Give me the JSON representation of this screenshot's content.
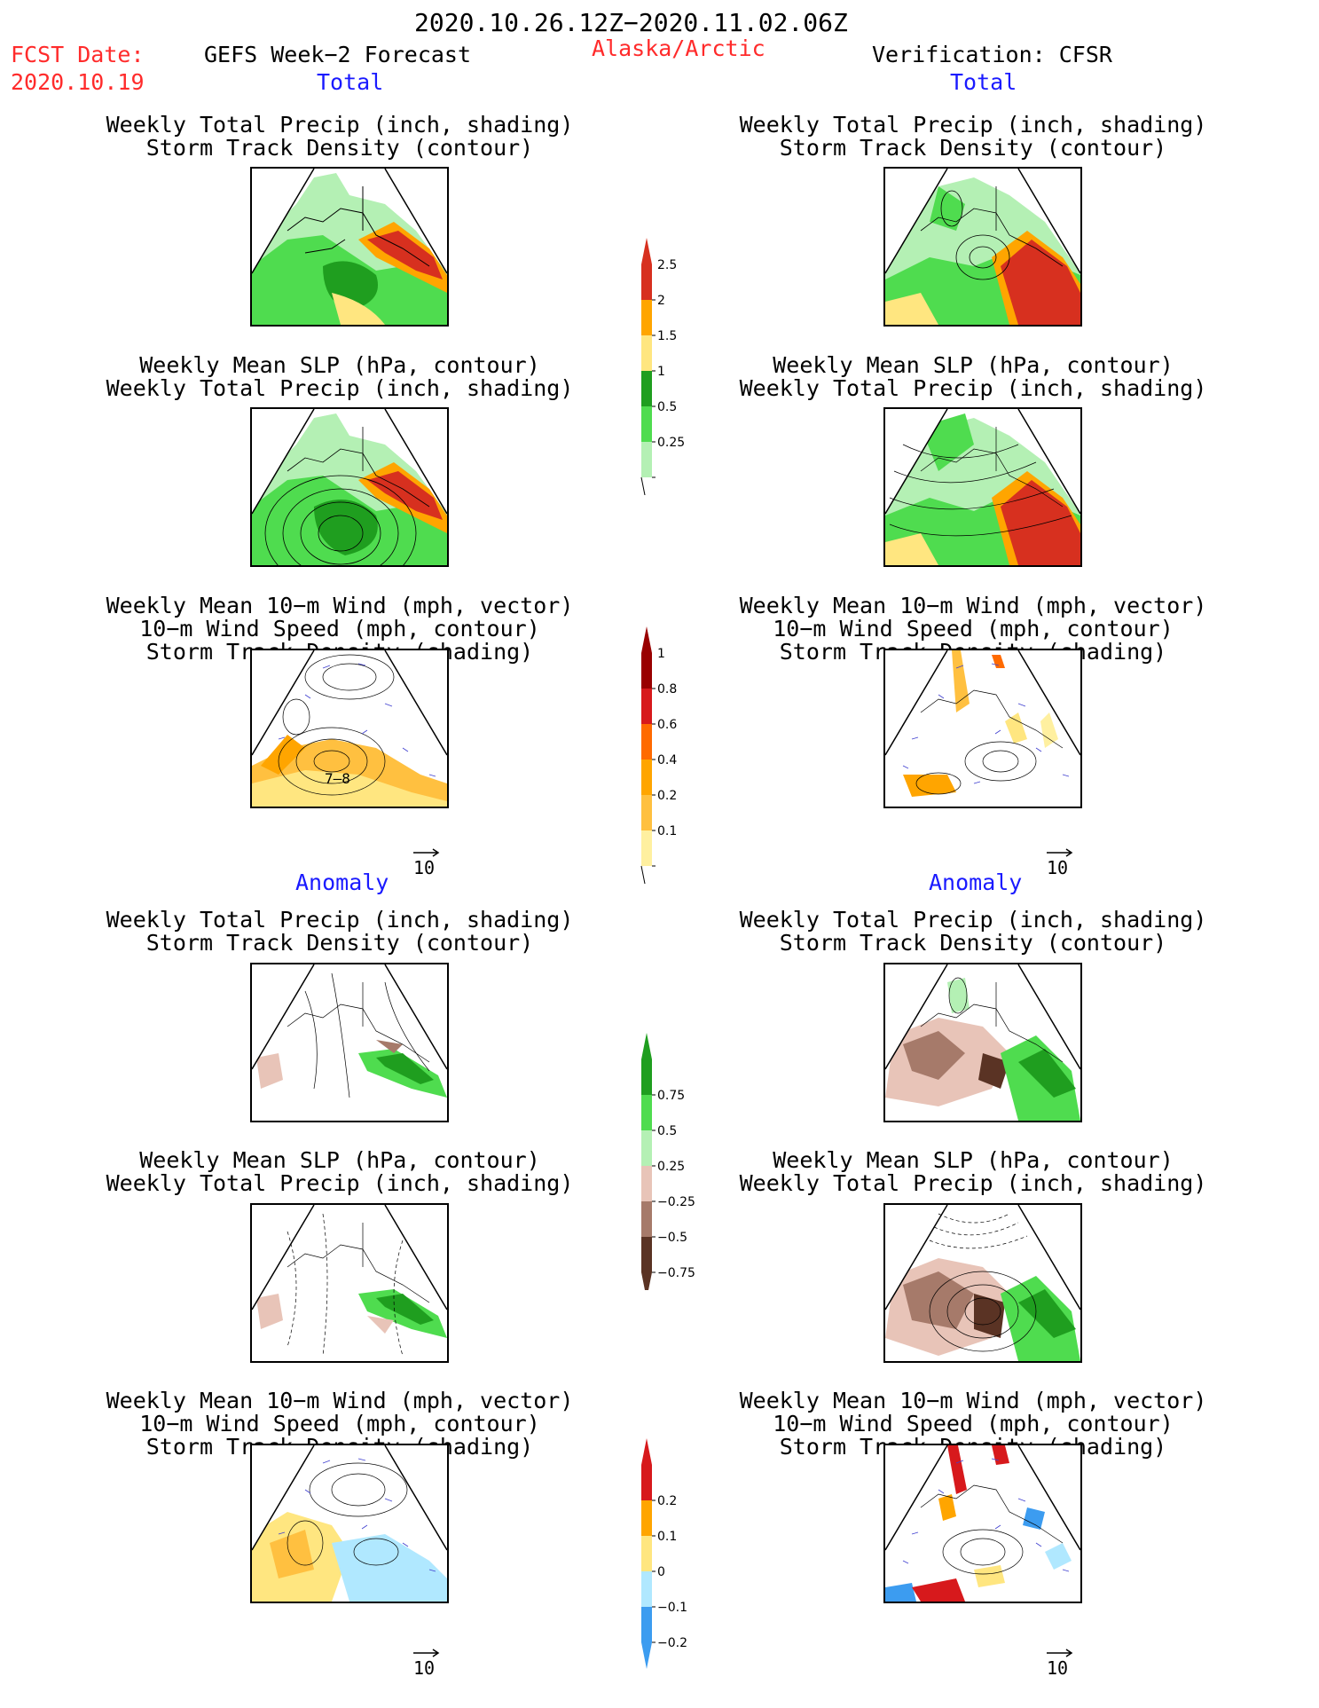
{
  "header": {
    "title": "2020.10.26.12Z−2020.11.02.06Z",
    "fcst_label": "FCST Date:",
    "fcst_date": "2020.10.19",
    "forecast": "GEFS Week−2 Forecast",
    "region": "Alaska/Arctic",
    "verification": "Verification: CFSR"
  },
  "sections": {
    "total": "Total",
    "anomaly": "Anomaly"
  },
  "panel_titles": {
    "precip_track": [
      "Weekly Total Precip (inch, shading)",
      "Storm Track Density (contour)"
    ],
    "slp_precip": [
      "Weekly Mean SLP (hPa, contour)",
      "Weekly Total Precip (inch, shading)"
    ],
    "wind_track": [
      "Weekly Mean 10−m Wind (mph, vector)",
      "10−m Wind Speed (mph, contour)",
      "Storm Track Density (shading)"
    ]
  },
  "vector_ref": "10",
  "panel_labels": {
    "total_wind_left": "7–8"
  },
  "colorbars": {
    "precip_total": [
      "2.5",
      "2",
      "1.5",
      "1",
      "0.5",
      "0.25"
    ],
    "track_total": [
      "1",
      "0.8",
      "0.6",
      "0.4",
      "0.2",
      "0.1"
    ],
    "precip_anom": [
      "0.75",
      "0.5",
      "0.25",
      "−0.25",
      "−0.5",
      "−0.75"
    ],
    "track_anom": [
      "0.2",
      "0.1",
      "0",
      "−0.1",
      "−0.2"
    ]
  },
  "colors": {
    "precip_total": [
      "#d7301f",
      "#ffa500",
      "#ffe680",
      "#1f9e1f",
      "#4fdc4f",
      "#b4f0b4"
    ],
    "track_total": [
      "#990000",
      "#d7191c",
      "#ff6a00",
      "#ffa500",
      "#ffc040",
      "#fff0a0"
    ],
    "precip_anom": [
      "#1f9e1f",
      "#4fdc4f",
      "#b4f0b4",
      "#e8c4b8",
      "#a67a6a",
      "#5a3324"
    ],
    "track_anom": [
      "#d7191c",
      "#ffa500",
      "#ffe680",
      "#b0e8ff",
      "#3c9cf0"
    ]
  }
}
